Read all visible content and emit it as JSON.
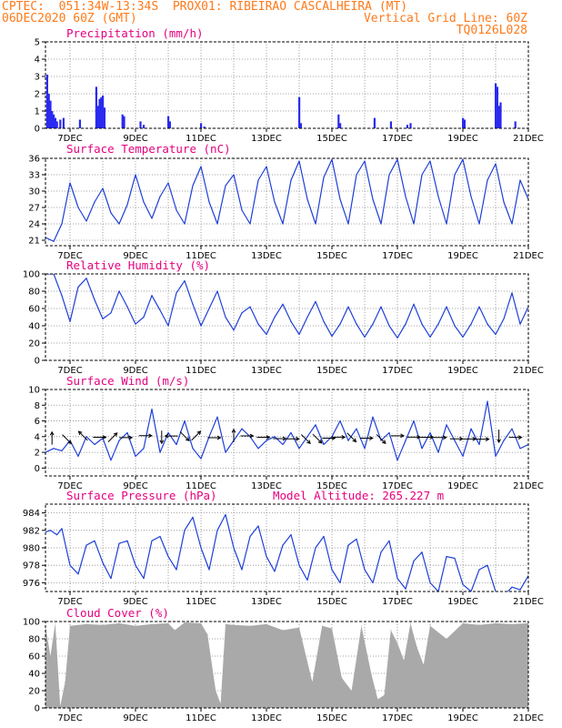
{
  "header": {
    "line1_left": "CPTEC:  051:34W-13:34S  PROX01: RIBEIRAO CASCALHEIRA (MT)",
    "line2_left": "06DEC2020 60Z (GMT)",
    "line2_right": "Vertical Grid Line: 60Z",
    "line3_right": "TQ0126L028"
  },
  "x_ticks": [
    "7DEC",
    "9DEC",
    "11DEC",
    "13DEC",
    "15DEC",
    "17DEC",
    "19DEC",
    "21DEC"
  ],
  "colors": {
    "header": "#ff7a1a",
    "title": "#e5007e",
    "line": "#1f3fd8",
    "bar": "#2a2af0",
    "cloud": "#a9a9a9"
  },
  "panels": {
    "precip": {
      "title": "Precipitation (mm/h)"
    },
    "temp": {
      "title": "Surface Temperature (nC)"
    },
    "rh": {
      "title": "Relative Humidity (%)"
    },
    "wind": {
      "title": "Surface Wind (m/s)"
    },
    "pres": {
      "title": "Surface Pressure (hPa)",
      "extra": "Model Altitude: 265.227 m"
    },
    "cloud": {
      "title": "Cloud Cover (%)"
    }
  },
  "chart_data": [
    {
      "type": "bar",
      "title": "Precipitation (mm/h)",
      "ylim": [
        0,
        5
      ],
      "yticks": [
        0,
        1,
        2,
        3,
        4,
        5
      ],
      "x_range_days": [
        6.25,
        21
      ],
      "x": [
        6.3,
        6.35,
        6.4,
        6.45,
        6.5,
        6.55,
        6.6,
        6.7,
        6.8,
        7.3,
        7.8,
        7.85,
        7.9,
        7.95,
        8.0,
        8.05,
        8.6,
        8.65,
        9.15,
        9.25,
        10.0,
        10.05,
        11.0,
        11.1,
        14.0,
        14.05,
        15.2,
        15.25,
        16.3,
        16.8,
        17.3,
        17.4,
        19.0,
        19.05,
        20.0,
        20.05,
        20.1,
        20.15,
        20.6
      ],
      "values": [
        3.1,
        2.0,
        1.6,
        1.0,
        0.8,
        0.6,
        0.4,
        0.5,
        0.6,
        0.5,
        2.4,
        1.3,
        1.7,
        1.8,
        1.9,
        1.2,
        0.8,
        0.7,
        0.4,
        0.2,
        0.7,
        0.4,
        0.3,
        0.1,
        1.8,
        0.3,
        0.8,
        0.3,
        0.6,
        0.4,
        0.2,
        0.3,
        0.6,
        0.5,
        2.6,
        2.4,
        1.3,
        1.5,
        0.4
      ]
    },
    {
      "type": "line",
      "title": "Surface Temperature (nC)",
      "ylim": [
        20,
        36
      ],
      "yticks": [
        21,
        24,
        27,
        30,
        33,
        36
      ],
      "x": [
        6.25,
        6.5,
        6.75,
        7.0,
        7.25,
        7.5,
        7.75,
        8.0,
        8.25,
        8.5,
        8.75,
        9.0,
        9.25,
        9.5,
        9.75,
        10.0,
        10.25,
        10.5,
        10.75,
        11.0,
        11.25,
        11.5,
        11.75,
        12.0,
        12.25,
        12.5,
        12.75,
        13.0,
        13.25,
        13.5,
        13.75,
        14.0,
        14.25,
        14.5,
        14.75,
        15.0,
        15.25,
        15.5,
        15.75,
        16.0,
        16.25,
        16.5,
        16.75,
        17.0,
        17.25,
        17.5,
        17.75,
        18.0,
        18.25,
        18.5,
        18.75,
        19.0,
        19.25,
        19.5,
        19.75,
        20.0,
        20.25,
        20.5,
        20.75,
        21.0
      ],
      "values": [
        21.5,
        20.8,
        24,
        31.5,
        27,
        24.5,
        28,
        30.5,
        26,
        24,
        27.5,
        33,
        28,
        25,
        29,
        31.5,
        26.5,
        24,
        31,
        34.5,
        28,
        24,
        31,
        33,
        26.5,
        24,
        32,
        34.5,
        28,
        24,
        32,
        35.5,
        28.5,
        24,
        32.5,
        35.8,
        28.5,
        24,
        33,
        35.5,
        28.5,
        24,
        33,
        35.8,
        29,
        24,
        33,
        35.5,
        29,
        24,
        33,
        35.8,
        29,
        24,
        32,
        35,
        28,
        24,
        32,
        28.5
      ]
    },
    {
      "type": "line",
      "title": "Relative Humidity (%)",
      "ylim": [
        0,
        100
      ],
      "yticks": [
        0,
        20,
        40,
        60,
        80,
        100
      ],
      "x": [
        6.25,
        6.5,
        6.75,
        7.0,
        7.25,
        7.5,
        7.75,
        8.0,
        8.25,
        8.5,
        8.75,
        9.0,
        9.25,
        9.5,
        9.75,
        10.0,
        10.25,
        10.5,
        10.75,
        11.0,
        11.25,
        11.5,
        11.75,
        12.0,
        12.25,
        12.5,
        12.75,
        13.0,
        13.25,
        13.5,
        13.75,
        14.0,
        14.25,
        14.5,
        14.75,
        15.0,
        15.25,
        15.5,
        15.75,
        16.0,
        16.25,
        16.5,
        16.75,
        17.0,
        17.25,
        17.5,
        17.75,
        18.0,
        18.25,
        18.5,
        18.75,
        19.0,
        19.25,
        19.5,
        19.75,
        20.0,
        20.25,
        20.5,
        20.75,
        21.0
      ],
      "values": [
        100,
        100,
        75,
        45,
        85,
        95,
        70,
        48,
        55,
        80,
        62,
        42,
        50,
        75,
        58,
        40,
        78,
        92,
        65,
        40,
        60,
        80,
        50,
        35,
        55,
        62,
        42,
        30,
        50,
        65,
        45,
        30,
        50,
        68,
        45,
        28,
        42,
        62,
        42,
        27,
        42,
        62,
        40,
        26,
        42,
        65,
        42,
        27,
        42,
        62,
        40,
        27,
        42,
        62,
        42,
        30,
        48,
        78,
        42,
        62
      ]
    },
    {
      "type": "line",
      "title": "Surface Wind (m/s)",
      "ylim": [
        -1,
        10
      ],
      "yticks": [
        0,
        2,
        4,
        6,
        8,
        10
      ],
      "x": [
        6.25,
        6.5,
        6.75,
        7.0,
        7.25,
        7.5,
        7.75,
        8.0,
        8.25,
        8.5,
        8.75,
        9.0,
        9.25,
        9.5,
        9.75,
        10.0,
        10.25,
        10.5,
        10.75,
        11.0,
        11.25,
        11.5,
        11.75,
        12.0,
        12.25,
        12.5,
        12.75,
        13.0,
        13.25,
        13.5,
        13.75,
        14.0,
        14.25,
        14.5,
        14.75,
        15.0,
        15.25,
        15.5,
        15.75,
        16.0,
        16.25,
        16.5,
        16.75,
        17.0,
        17.25,
        17.5,
        17.75,
        18.0,
        18.25,
        18.5,
        18.75,
        19.0,
        19.25,
        19.5,
        19.75,
        20.0,
        20.25,
        20.5,
        20.75,
        21.0
      ],
      "values": [
        2.0,
        2.5,
        2.2,
        3.5,
        1.5,
        4.0,
        3.0,
        3.8,
        1.0,
        3.5,
        4.5,
        1.5,
        2.5,
        7.5,
        2.0,
        4.5,
        3.0,
        6.0,
        2.5,
        1.2,
        4.0,
        6.5,
        2.0,
        3.5,
        5.0,
        4.0,
        2.5,
        3.5,
        4.0,
        3.0,
        4.5,
        2.5,
        4.0,
        5.5,
        3.0,
        4.0,
        6.0,
        3.5,
        5.0,
        2.5,
        6.5,
        3.5,
        4.5,
        1.0,
        3.5,
        6.0,
        2.5,
        4.5,
        2.0,
        5.5,
        3.5,
        1.5,
        5.0,
        3.0,
        8.5,
        1.5,
        3.5,
        5.0,
        2.5,
        3.0
      ],
      "arrows": [
        {
          "day": 6.45,
          "dir": "N"
        },
        {
          "day": 6.9,
          "dir": "SE"
        },
        {
          "day": 7.4,
          "dir": "NW"
        },
        {
          "day": 7.9,
          "dir": "E"
        },
        {
          "day": 8.3,
          "dir": "NE"
        },
        {
          "day": 8.7,
          "dir": "E"
        },
        {
          "day": 9.3,
          "dir": "E"
        },
        {
          "day": 9.8,
          "dir": "S"
        },
        {
          "day": 10.1,
          "dir": "W"
        },
        {
          "day": 10.5,
          "dir": "SE"
        },
        {
          "day": 10.85,
          "dir": "NE"
        },
        {
          "day": 11.4,
          "dir": "E"
        },
        {
          "day": 12.0,
          "dir": "N"
        },
        {
          "day": 12.4,
          "dir": "E"
        },
        {
          "day": 12.9,
          "dir": "E"
        },
        {
          "day": 13.4,
          "dir": "E"
        },
        {
          "day": 13.8,
          "dir": "E"
        },
        {
          "day": 14.2,
          "dir": "SE"
        },
        {
          "day": 14.55,
          "dir": "SE"
        },
        {
          "day": 14.9,
          "dir": "E"
        },
        {
          "day": 15.2,
          "dir": "E"
        },
        {
          "day": 15.6,
          "dir": "SE"
        },
        {
          "day": 16.05,
          "dir": "E"
        },
        {
          "day": 16.5,
          "dir": "SE"
        },
        {
          "day": 17.0,
          "dir": "E"
        },
        {
          "day": 17.5,
          "dir": "E"
        },
        {
          "day": 17.9,
          "dir": "E"
        },
        {
          "day": 18.3,
          "dir": "E"
        },
        {
          "day": 18.8,
          "dir": "E"
        },
        {
          "day": 19.2,
          "dir": "E"
        },
        {
          "day": 19.6,
          "dir": "E"
        },
        {
          "day": 20.1,
          "dir": "S"
        },
        {
          "day": 20.6,
          "dir": "E"
        }
      ]
    },
    {
      "type": "line",
      "title": "Surface Pressure (hPa)",
      "ylim": [
        975,
        985
      ],
      "yticks": [
        976,
        978,
        980,
        982,
        984
      ],
      "x": [
        6.25,
        6.4,
        6.6,
        6.75,
        7.0,
        7.25,
        7.5,
        7.75,
        8.0,
        8.25,
        8.5,
        8.75,
        9.0,
        9.25,
        9.5,
        9.75,
        10.0,
        10.25,
        10.5,
        10.75,
        11.0,
        11.25,
        11.5,
        11.75,
        12.0,
        12.25,
        12.5,
        12.75,
        13.0,
        13.25,
        13.5,
        13.75,
        14.0,
        14.25,
        14.5,
        14.75,
        15.0,
        15.25,
        15.5,
        15.75,
        16.0,
        16.25,
        16.5,
        16.75,
        17.0,
        17.25,
        17.5,
        17.75,
        18.0,
        18.25,
        18.5,
        18.75,
        19.0,
        19.25,
        19.5,
        19.75,
        20.0,
        20.25,
        20.5,
        20.75,
        21.0
      ],
      "values": [
        981.8,
        982.0,
        981.5,
        982.2,
        978.0,
        977.0,
        980.3,
        980.8,
        978.3,
        976.5,
        980.5,
        980.8,
        978.0,
        976.5,
        980.8,
        981.3,
        979.0,
        977.5,
        982.0,
        983.5,
        980.0,
        977.5,
        982.0,
        983.8,
        980.0,
        977.5,
        981.3,
        982.5,
        979.0,
        977.3,
        980.3,
        981.5,
        978.0,
        976.3,
        980.0,
        981.3,
        977.5,
        976.0,
        980.3,
        981.0,
        977.5,
        976.0,
        979.5,
        980.8,
        976.5,
        975.3,
        978.5,
        979.5,
        976.0,
        975.0,
        979.0,
        978.8,
        975.8,
        975.0,
        977.5,
        978.0,
        975.0,
        974.5,
        975.5,
        975.2,
        976.8
      ]
    },
    {
      "type": "area",
      "title": "Cloud Cover (%)",
      "ylim": [
        0,
        100
      ],
      "yticks": [
        0,
        20,
        40,
        60,
        80,
        100
      ],
      "x": [
        6.25,
        6.4,
        6.55,
        6.7,
        6.85,
        7.0,
        7.5,
        8.0,
        8.5,
        9.0,
        9.5,
        10.0,
        10.2,
        10.5,
        11.0,
        11.2,
        11.45,
        11.6,
        11.75,
        12.0,
        12.5,
        13.0,
        13.5,
        14.0,
        14.4,
        14.7,
        15.0,
        15.3,
        15.6,
        15.9,
        16.2,
        16.4,
        16.6,
        16.8,
        17.0,
        17.2,
        17.4,
        17.6,
        17.8,
        18.0,
        18.5,
        19.0,
        19.5,
        20.0,
        20.5,
        21.0
      ],
      "values": [
        95,
        60,
        98,
        2,
        30,
        95,
        97,
        96,
        98,
        95,
        97,
        98,
        90,
        99,
        98,
        85,
        20,
        5,
        97,
        96,
        95,
        97,
        90,
        93,
        30,
        95,
        92,
        35,
        20,
        95,
        40,
        10,
        15,
        90,
        75,
        55,
        98,
        70,
        50,
        95,
        80,
        98,
        96,
        98,
        97,
        98
      ]
    }
  ]
}
